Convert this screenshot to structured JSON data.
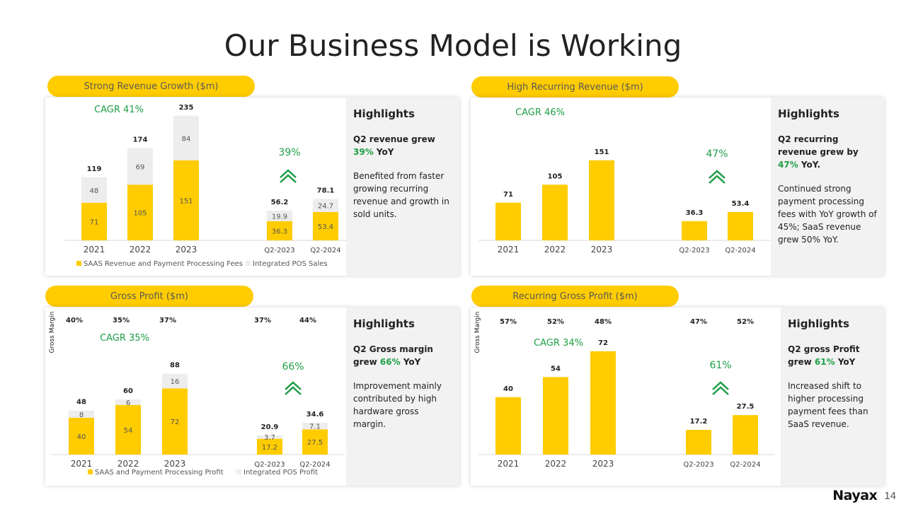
{
  "page_title": "Our Business Model is Working",
  "page_number": "14",
  "logo": "Nayax",
  "colors": {
    "accent": "#FFCC00",
    "secondary": "#EDEDED",
    "green": "#1F9E47"
  },
  "panels": {
    "revenue": {
      "pill": "Strong Revenue Growth ($m)",
      "cagr": "CAGR 41%",
      "growth": "39%",
      "highlights": {
        "heading": "Highlights",
        "lead_before": "Q2 revenue grew ",
        "lead_pct": "39%",
        "lead_after": " YoY",
        "body": "Benefited from faster growing recurring revenue and growth in sold units."
      }
    },
    "recurring": {
      "pill": "High Recurring Revenue ($m)",
      "cagr": "CAGR 46%",
      "growth": "47%",
      "highlights": {
        "heading": "Highlights",
        "lead_before": "Q2 recurring revenue grew by ",
        "lead_pct": "47%",
        "lead_after": " YoY.",
        "body": "Continued strong payment processing fees with YoY growth of 45%; SaaS revenue grew 50% YoY."
      }
    },
    "gross": {
      "pill": "Gross Profit ($m)",
      "cagr": "CAGR 35%",
      "growth": "66%",
      "axis_label": "Gross Margin",
      "highlights": {
        "heading": "Highlights",
        "lead_before": "Q2 Gross margin grew ",
        "lead_pct": "66%",
        "lead_after": " YoY",
        "body": "Improvement mainly contributed by high hardware gross margin."
      }
    },
    "recurring_gross": {
      "pill": "Recurring Gross Profit ($m)",
      "cagr": "CAGR 34%",
      "growth": "61%",
      "axis_label": "Gross Margin",
      "highlights": {
        "heading": "Highlights",
        "lead_before": "Q2 gross Profit grew ",
        "lead_pct": "61%",
        "lead_after": " YoY",
        "body": "Increased shift to higher processing payment fees than SaaS revenue."
      }
    }
  },
  "chart_data": [
    {
      "type": "bar",
      "stacked": true,
      "categories": [
        "2021",
        "2022",
        "2023",
        "Q2-2023",
        "Q2-2024"
      ],
      "series": [
        {
          "name": "SAAS Revenue and Payment Processing Fees",
          "values": [
            71,
            105,
            151,
            36.3,
            53.4
          ],
          "labels": [
            "71",
            "105",
            "151",
            "36.3",
            "53.4"
          ]
        },
        {
          "name": "Integrated POS Sales",
          "values": [
            48,
            69,
            84,
            19.9,
            24.7
          ],
          "labels": [
            "48",
            "69",
            "84",
            "19.9",
            "24.7"
          ]
        }
      ],
      "totals": [
        "119",
        "174",
        "235",
        "56.2",
        "78.1"
      ],
      "legend": "bottom"
    },
    {
      "type": "bar",
      "stacked": false,
      "categories": [
        "2021",
        "2022",
        "2023",
        "Q2-2023",
        "Q2-2024"
      ],
      "series": [
        {
          "values": [
            71,
            105,
            151,
            36.3,
            53.4
          ],
          "labels": [
            "71",
            "105",
            "151",
            "36.3",
            "53.4"
          ]
        }
      ]
    },
    {
      "type": "bar",
      "stacked": true,
      "categories": [
        "2021",
        "2022",
        "2023",
        "Q2-2023",
        "Q2-2024"
      ],
      "series": [
        {
          "name": "SAAS and Payment Processing Profit",
          "values": [
            40,
            54,
            72,
            17.2,
            27.5
          ],
          "labels": [
            "40",
            "54",
            "72",
            "17.2",
            "27.5"
          ]
        },
        {
          "name": "Integrated POS Profit",
          "values": [
            8,
            6,
            16,
            3.7,
            7.1
          ],
          "labels": [
            "8",
            "6",
            "16",
            "3.7",
            "7.1"
          ]
        }
      ],
      "totals": [
        "48",
        "60",
        "88",
        "20.9",
        "34.6"
      ],
      "margins": [
        "40%",
        "35%",
        "37%",
        "37%",
        "44%"
      ],
      "legend": "bottom"
    },
    {
      "type": "bar",
      "stacked": false,
      "categories": [
        "2021",
        "2022",
        "2023",
        "Q2-2023",
        "Q2-2024"
      ],
      "series": [
        {
          "values": [
            40,
            54,
            72,
            17.2,
            27.5
          ],
          "labels": [
            "40",
            "54",
            "72",
            "17.2",
            "27.5"
          ]
        }
      ],
      "margins": [
        "57%",
        "52%",
        "48%",
        "47%",
        "52%"
      ]
    }
  ]
}
